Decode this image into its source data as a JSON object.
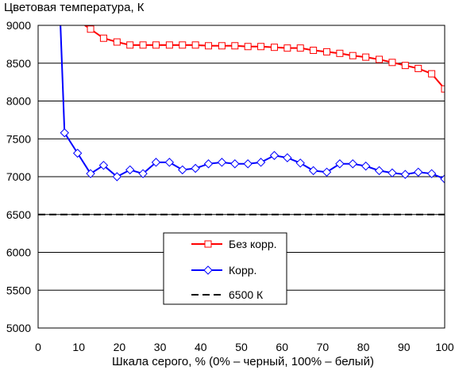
{
  "chart_data": {
    "type": "line",
    "title": "",
    "ylabel": "Цветовая температура, К",
    "xlabel": "Шкала серого, % (0% – черный, 100% – белый)",
    "xlim": [
      0,
      100
    ],
    "ylim": [
      5000,
      9000
    ],
    "x_ticks": [
      0,
      10,
      20,
      30,
      40,
      50,
      60,
      70,
      80,
      90,
      100
    ],
    "y_ticks": [
      5000,
      5500,
      6000,
      6500,
      7000,
      7500,
      8000,
      8500,
      9000
    ],
    "grid": "horizontal",
    "legend_position": "center",
    "series": [
      {
        "name": "Без корр.",
        "color": "#ff0000",
        "marker": "square",
        "x": [
          12.9,
          16.1,
          19.4,
          22.6,
          25.8,
          29.0,
          32.3,
          35.5,
          38.7,
          41.9,
          45.2,
          48.4,
          51.6,
          54.8,
          58.1,
          61.3,
          64.5,
          67.7,
          71.0,
          74.2,
          77.4,
          80.6,
          83.9,
          87.1,
          90.3,
          93.5,
          96.8,
          100
        ],
        "y": [
          8950,
          8830,
          8780,
          8740,
          8740,
          8740,
          8740,
          8740,
          8740,
          8730,
          8730,
          8730,
          8720,
          8720,
          8710,
          8700,
          8700,
          8670,
          8650,
          8630,
          8600,
          8580,
          8550,
          8510,
          8470,
          8430,
          8360,
          8160
        ],
        "x_unmarked": [
          11.5
        ],
        "y_unmarked": [
          9000
        ]
      },
      {
        "name": "Корр.",
        "color": "#0000ff",
        "marker": "diamond",
        "x": [
          6.5,
          9.7,
          12.9,
          16.1,
          19.4,
          22.6,
          25.8,
          29.0,
          32.3,
          35.5,
          38.7,
          41.9,
          45.2,
          48.4,
          51.6,
          54.8,
          58.1,
          61.3,
          64.5,
          67.7,
          71.0,
          74.2,
          77.4,
          80.6,
          83.9,
          87.1,
          90.3,
          93.5,
          96.8,
          100
        ],
        "y": [
          7580,
          7310,
          7040,
          7150,
          7000,
          7090,
          7040,
          7190,
          7190,
          7090,
          7110,
          7170,
          7190,
          7170,
          7170,
          7190,
          7280,
          7250,
          7180,
          7080,
          7060,
          7170,
          7170,
          7140,
          7080,
          7050,
          7030,
          7060,
          7040,
          6970
        ],
        "x_unmarked": [
          5.5
        ],
        "y_unmarked": [
          9000
        ]
      },
      {
        "name": "6500 К",
        "color": "#000000",
        "marker": "none",
        "dashed": true,
        "x": [
          0,
          100
        ],
        "y": [
          6500,
          6500
        ]
      }
    ]
  }
}
